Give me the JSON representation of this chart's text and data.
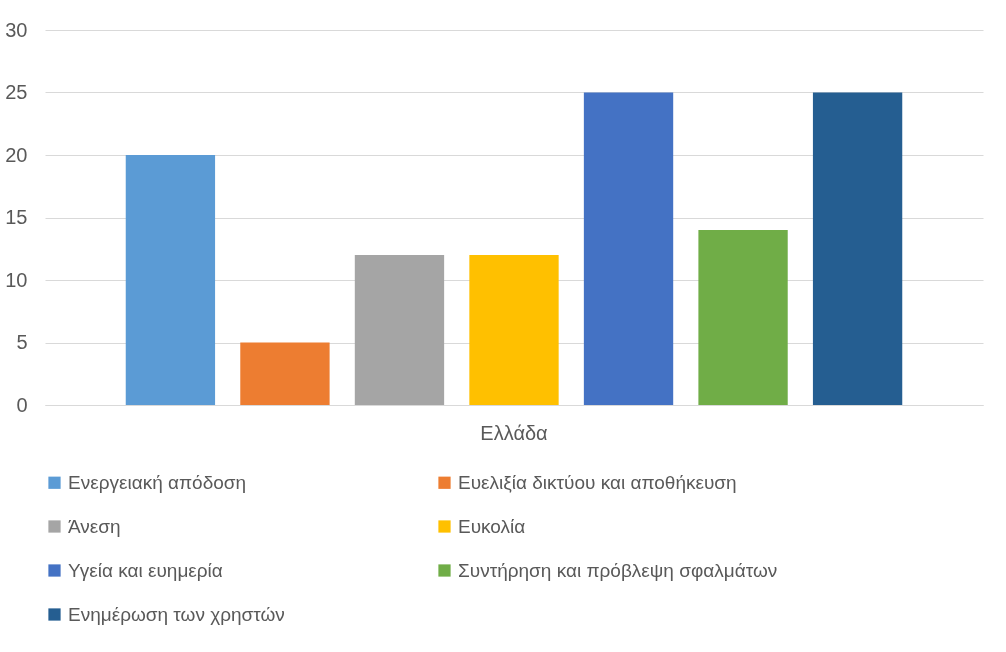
{
  "chart_data": {
    "type": "bar",
    "categories": [
      "Ελλάδα"
    ],
    "series": [
      {
        "name": "Ενεργειακή απόδοση",
        "color": "#5b9bd5",
        "values": [
          20
        ]
      },
      {
        "name": "Ευελιξία δικτύου και αποθήκευση",
        "color": "#ed7d31",
        "values": [
          5
        ]
      },
      {
        "name": "Άνεση",
        "color": "#a5a5a5",
        "values": [
          12
        ]
      },
      {
        "name": "Ευκολία",
        "color": "#ffc000",
        "values": [
          12
        ]
      },
      {
        "name": "Υγεία και ευημερία",
        "color": "#4472c4",
        "values": [
          25
        ]
      },
      {
        "name": "Συντήρηση και πρόβλεψη σφαλμάτων",
        "color": "#70ad47",
        "values": [
          14
        ]
      },
      {
        "name": "Ενημέρωση των χρηστών",
        "color": "#255e91",
        "values": [
          25
        ]
      }
    ],
    "ylim": [
      0,
      30
    ],
    "yticks": [
      0,
      5,
      10,
      15,
      20,
      25,
      30
    ],
    "grid": "y",
    "legend": "bottom"
  }
}
